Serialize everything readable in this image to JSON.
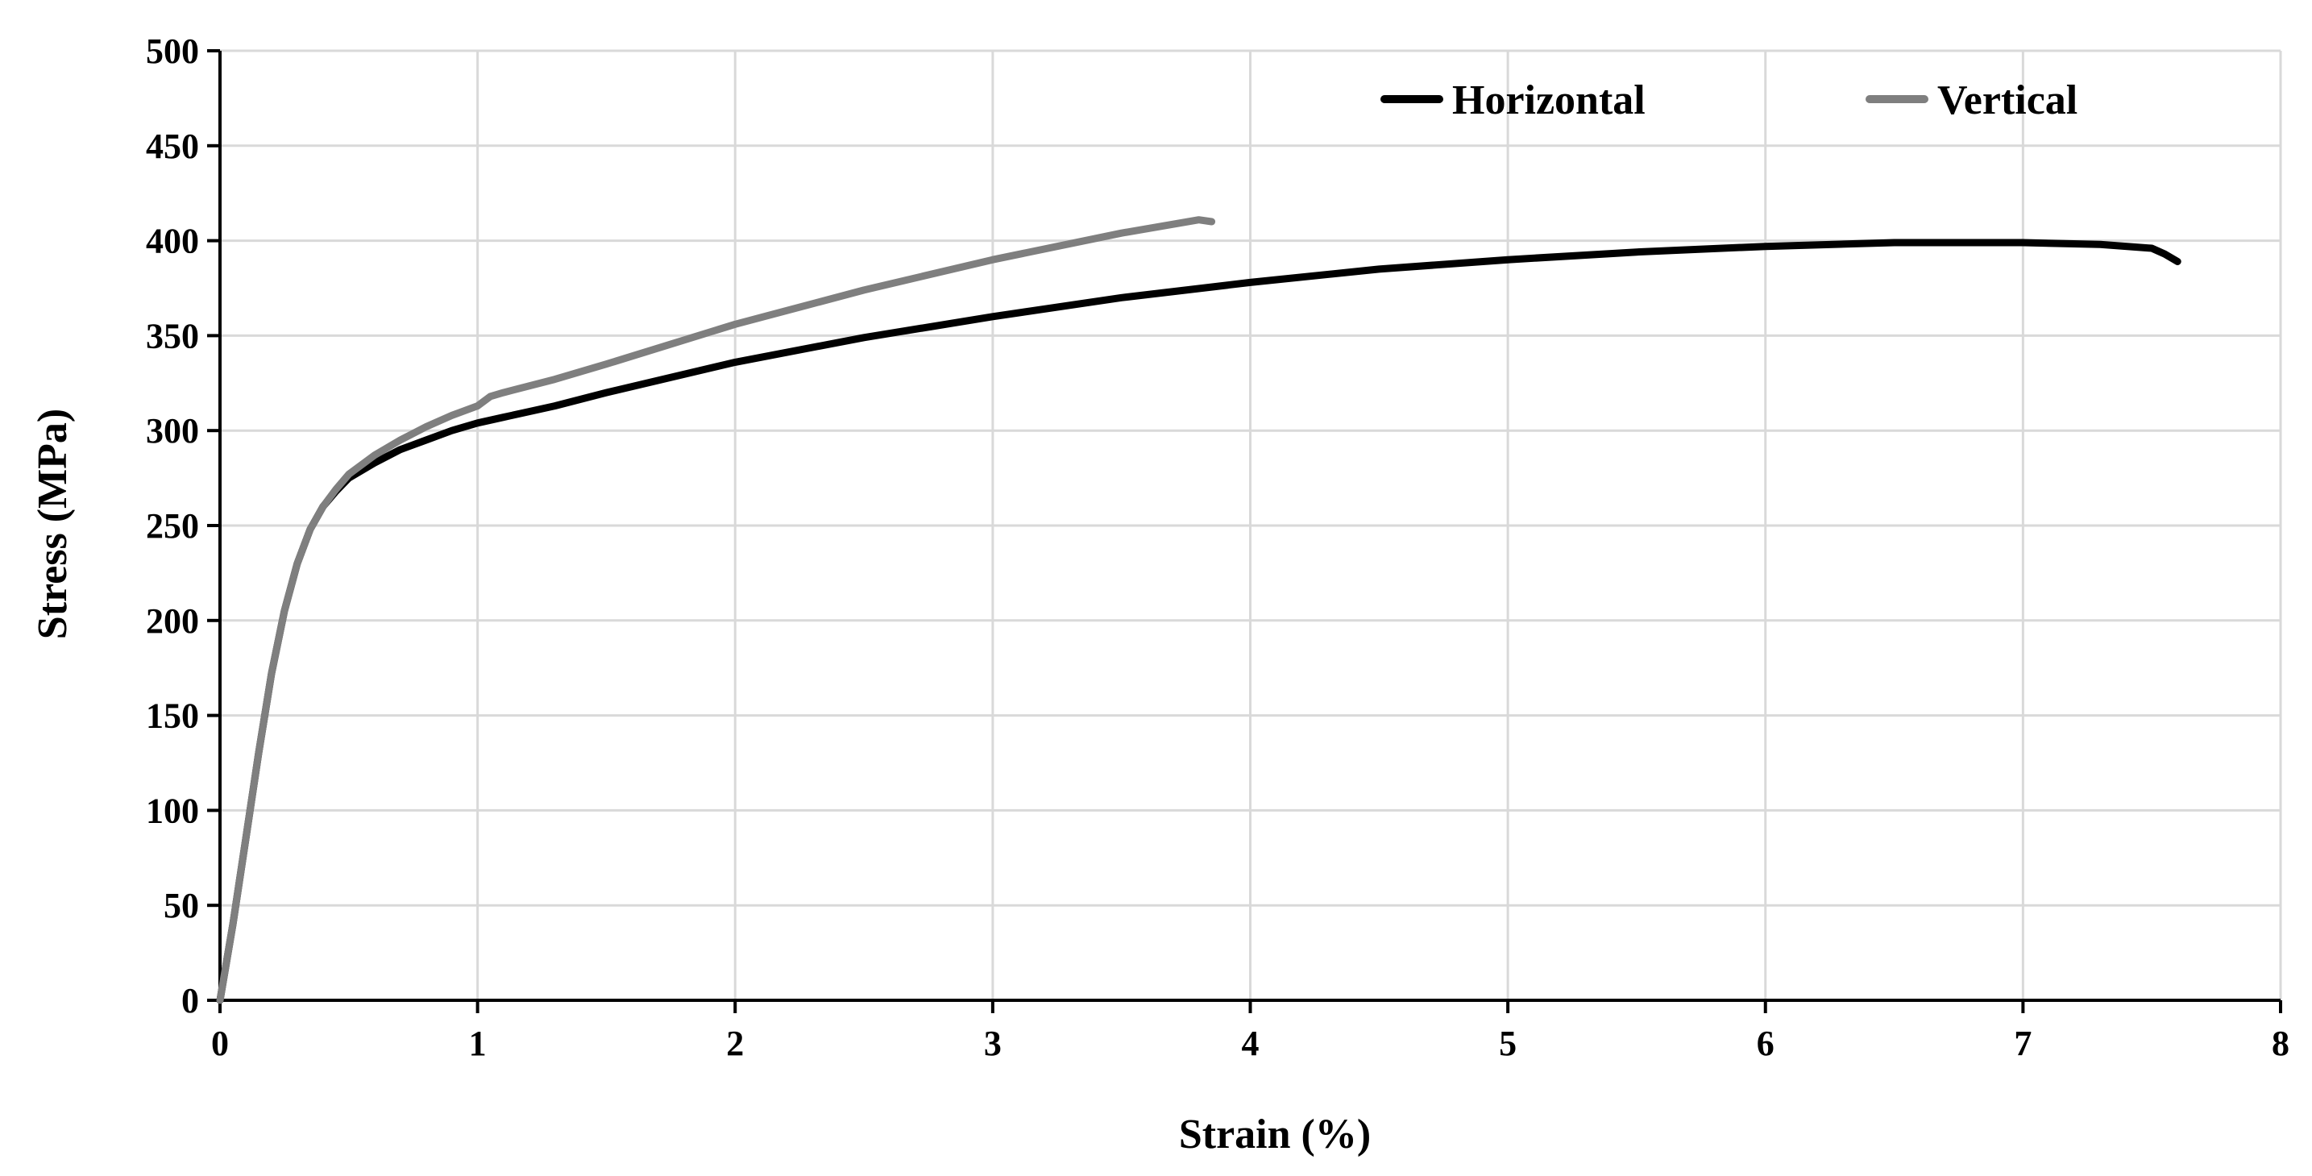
{
  "chart_data": {
    "type": "line",
    "title": "",
    "xlabel": "Strain (%)",
    "ylabel": "Stress (MPa)",
    "xlim": [
      0,
      8
    ],
    "ylim": [
      0,
      500
    ],
    "x_ticks": [
      "0",
      "1",
      "2",
      "3",
      "4",
      "5",
      "6",
      "7",
      "8"
    ],
    "y_ticks": [
      "0",
      "50",
      "100",
      "150",
      "200",
      "250",
      "300",
      "350",
      "400",
      "450",
      "500"
    ],
    "grid": true,
    "legend_position": "top-right",
    "series": [
      {
        "name": "Horizontal",
        "color": "#000000",
        "x": [
          0,
          0.05,
          0.1,
          0.15,
          0.2,
          0.25,
          0.3,
          0.35,
          0.4,
          0.45,
          0.5,
          0.6,
          0.7,
          0.8,
          0.9,
          1.0,
          1.1,
          1.3,
          1.5,
          2.0,
          2.5,
          3.0,
          3.5,
          4.0,
          4.5,
          5.0,
          5.5,
          6.0,
          6.5,
          7.0,
          7.3,
          7.5,
          7.55,
          7.6
        ],
        "y": [
          0,
          40,
          85,
          130,
          172,
          205,
          230,
          248,
          260,
          268,
          275,
          283,
          290,
          295,
          300,
          304,
          307,
          313,
          320,
          336,
          349,
          360,
          370,
          378,
          385,
          390,
          394,
          397,
          399,
          399,
          398,
          396,
          393,
          389
        ]
      },
      {
        "name": "Vertical",
        "color": "#7f7f7f",
        "x": [
          0,
          0.05,
          0.1,
          0.15,
          0.2,
          0.25,
          0.3,
          0.35,
          0.4,
          0.45,
          0.5,
          0.6,
          0.7,
          0.8,
          0.9,
          1.0,
          1.05,
          1.1,
          1.3,
          1.5,
          2.0,
          2.5,
          3.0,
          3.5,
          3.8,
          3.85
        ],
        "y": [
          0,
          40,
          85,
          130,
          172,
          205,
          230,
          248,
          260,
          269,
          277,
          287,
          295,
          302,
          308,
          313,
          318,
          320,
          327,
          335,
          356,
          374,
          390,
          404,
          411,
          410
        ]
      }
    ]
  }
}
